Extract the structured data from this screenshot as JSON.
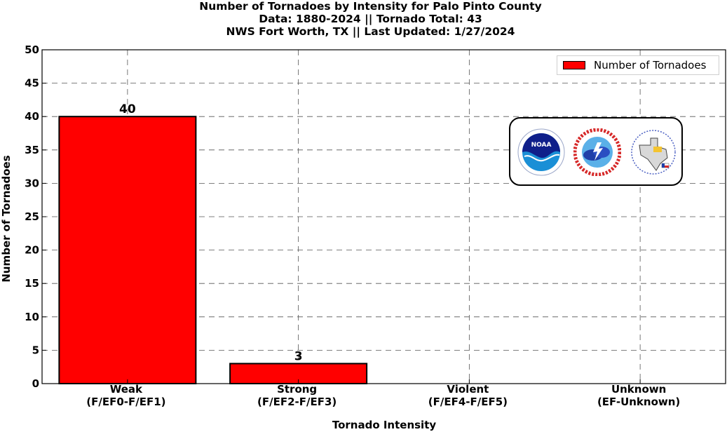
{
  "title": {
    "line1": "Number of Tornadoes by Intensity for Palo Pinto County",
    "line2": "Data: 1880-2024 || Tornado Total: 43",
    "line3": "NWS Fort Worth, TX || Last Updated: 1/27/2024"
  },
  "chart_data": {
    "type": "bar",
    "categories": [
      [
        "Weak",
        "(F/EF0-F/EF1)"
      ],
      [
        "Strong",
        "(F/EF2-F/EF3)"
      ],
      [
        "Violent",
        "(F/EF4-F/EF5)"
      ],
      [
        "Unknown",
        "(EF-Unknown)"
      ]
    ],
    "series": [
      {
        "name": "Number of Tornadoes",
        "values": [
          40,
          3,
          0,
          0
        ],
        "color": "#ff0000"
      }
    ],
    "data_labels": [
      "40",
      "3",
      "",
      ""
    ],
    "xlabel": "Tornado Intensity",
    "ylabel": "Number of Tornadoes",
    "ylim": [
      0,
      50
    ],
    "yticks": [
      0,
      5,
      10,
      15,
      20,
      25,
      30,
      35,
      40,
      45,
      50
    ],
    "grid": true,
    "legend": "top-right"
  },
  "logos": {
    "noaa": "noaa-logo",
    "nws": "nws-logo",
    "fwd": "nws-fort-worth-logo"
  }
}
